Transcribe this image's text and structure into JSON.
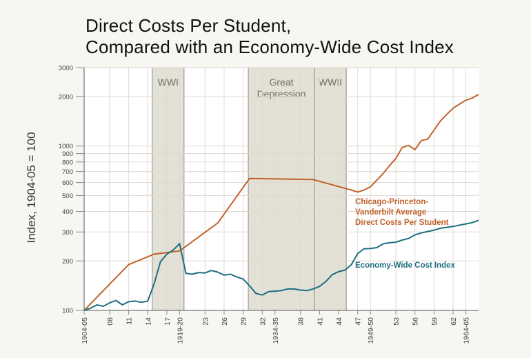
{
  "chart_data": {
    "type": "line",
    "title_line1": "Direct Costs Per Student,",
    "title_line2": "Compared with an Economy-Wide Cost Index",
    "ylabel": "Index, 1904-05 = 100",
    "yscale": "log",
    "ylim": [
      100,
      3000
    ],
    "xlim": [
      1904,
      1966
    ],
    "grid": true,
    "yticks": [
      100,
      200,
      300,
      400,
      500,
      600,
      700,
      800,
      900,
      1000,
      2000,
      3000
    ],
    "xticks": [
      {
        "x": 1904,
        "label": "1904-05"
      },
      {
        "x": 1908,
        "label": "08"
      },
      {
        "x": 1911,
        "label": "11"
      },
      {
        "x": 1914,
        "label": "14"
      },
      {
        "x": 1917,
        "label": "17"
      },
      {
        "x": 1919,
        "label": "1919-20"
      },
      {
        "x": 1923,
        "label": "23"
      },
      {
        "x": 1926,
        "label": "26"
      },
      {
        "x": 1929,
        "label": "29"
      },
      {
        "x": 1932,
        "label": "32"
      },
      {
        "x": 1934,
        "label": "1934-35"
      },
      {
        "x": 1938,
        "label": "38"
      },
      {
        "x": 1941,
        "label": "41"
      },
      {
        "x": 1944,
        "label": "44"
      },
      {
        "x": 1947,
        "label": "47"
      },
      {
        "x": 1949,
        "label": "1949-50"
      },
      {
        "x": 1953,
        "label": "53"
      },
      {
        "x": 1956,
        "label": "56"
      },
      {
        "x": 1959,
        "label": "59"
      },
      {
        "x": 1962,
        "label": "62"
      },
      {
        "x": 1964,
        "label": "1964-65"
      }
    ],
    "shaded_periods": [
      {
        "label": "WWI",
        "start": 1914.7,
        "end": 1919.7
      },
      {
        "label": "Great\nDepression",
        "start": 1929.8,
        "end": 1940.2
      },
      {
        "label": "WWII",
        "start": 1940.2,
        "end": 1945.2
      }
    ],
    "series": [
      {
        "name": "Chicago-Princeton-\nVanderbilt Average\nDirect Costs Per Student",
        "color": "#c0622b",
        "x": [
          1904,
          1911,
          1915,
          1919,
          1925,
          1930,
          1940,
          1946,
          1947,
          1948,
          1949,
          1950,
          1951,
          1952,
          1953,
          1954,
          1955,
          1956,
          1957,
          1958,
          1959,
          1960,
          1961,
          1962,
          1963,
          1964,
          1965,
          1966
        ],
        "y": [
          100,
          190,
          220,
          230,
          340,
          635,
          625,
          540,
          525,
          540,
          565,
          620,
          680,
          760,
          840,
          980,
          1010,
          950,
          1080,
          1100,
          1250,
          1420,
          1560,
          1700,
          1800,
          1900,
          1960,
          2060
        ]
      },
      {
        "name": "Economy-Wide Cost Index",
        "color": "#1e6e80",
        "x": [
          1904,
          1905,
          1906,
          1907,
          1908,
          1909,
          1910,
          1911,
          1912,
          1913,
          1914,
          1915,
          1916,
          1917,
          1918,
          1919,
          1920,
          1921,
          1922,
          1923,
          1924,
          1925,
          1926,
          1927,
          1928,
          1929,
          1930,
          1931,
          1932,
          1933,
          1934,
          1935,
          1936,
          1937,
          1938,
          1939,
          1940,
          1941,
          1942,
          1943,
          1944,
          1945,
          1946,
          1947,
          1948,
          1949,
          1950,
          1951,
          1952,
          1953,
          1954,
          1955,
          1956,
          1957,
          1958,
          1959,
          1960,
          1961,
          1962,
          1963,
          1964,
          1965,
          1966
        ],
        "y": [
          100,
          103,
          108,
          106,
          111,
          115,
          108,
          113,
          114,
          112,
          114,
          145,
          198,
          220,
          233,
          255,
          168,
          166,
          170,
          169,
          175,
          171,
          164,
          166,
          160,
          155,
          141,
          127,
          124,
          130,
          131,
          132,
          135,
          135,
          133,
          132,
          135,
          140,
          150,
          165,
          172,
          176,
          190,
          222,
          237,
          238,
          241,
          254,
          258,
          260,
          268,
          274,
          288,
          296,
          302,
          308,
          316,
          320,
          324,
          330,
          336,
          342,
          353
        ]
      }
    ]
  }
}
